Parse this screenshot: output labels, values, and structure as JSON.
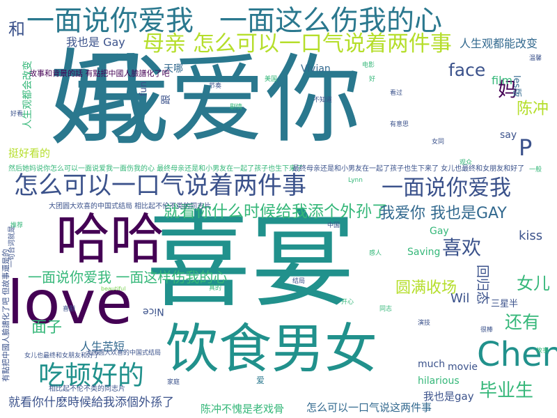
{
  "palette": {
    "purple": "#440154",
    "teal": "#2a788e",
    "sea": "#21918c",
    "green": "#35b779",
    "lime": "#b5de2b",
    "yellow": "#bddf26",
    "blue": "#31688e",
    "indigo": "#3b528b",
    "light": "#7ad151"
  },
  "words": {
    "w1": "我爱你",
    "w2": "喜宴",
    "w3": "妈",
    "w4": "love",
    "w5": "哈哈",
    "w6": "饮食男女",
    "w7": "一面说你爱我",
    "w8": "一面这么伤我的心",
    "w9": "母亲 怎么可以一口气说着两件事",
    "w10": "怎么可以一口气说着两件事",
    "w11": "一面说你爱我",
    "w12": "Chen",
    "w13": "吃顿好的",
    "w14": "就看你什么时候给我添个外孙了",
    "w15": "我爱你 我也是GAY",
    "w16": "一面说你爱我 一面这样伤我的心",
    "w17": "喜欢",
    "w18": "face",
    "w19": "P",
    "w20": "妈",
    "w21": "陈冲",
    "w22": "女儿",
    "w23": "毕业生",
    "w24": "还有",
    "w25": "圆满收场",
    "w26": "面子",
    "w27": "人生苦短",
    "w28": "就看你什麽時候給我添個外孫了",
    "w29": "陈冲不愧是老戏骨",
    "w30": "怎么可以一口气说这两件事",
    "w31": "我也是gay",
    "w32": "我也是 Gay",
    "w33": "人生观都能改变",
    "w34": "和",
    "w35": "Vivian",
    "w36": "天哪",
    "w37": "film",
    "w38": "kiss",
    "w39": "Wil",
    "w40": "三星半",
    "w41": "much",
    "w42": "movie",
    "w43": "hilarious",
    "w44": "Saving",
    "w45": "Gay",
    "w46": "say",
    "w47": "挺好看的",
    "w48": "故事和背景的話 有點把中國人臉譜化了吧",
    "w49": "然后她妈说你怎么可以一面说爱我一面伤我的心 最终母亲还是和小男友在一起了孩子也生下来了",
    "w50": "最终母亲还是和小男友在一起了孩子也生下来了 女儿也最终和女朋友和好了",
    "w51": "大团圆大欢喜的中国式结局 相比起不伦不类的同志片",
    "w52": "大团圆大欢喜的中国式结局",
    "w53": "女儿也最终和女朋友和好了",
    "w54": "相比起不伦不类的同志片",
    "w55": "人生观都会改变",
    "w56": "跟",
    "w57": "fun",
    "w58": "les版",
    "w59": "回归态",
    "w60": "Nice",
    "w61": "有點把中國人臉譜化了吧 但故事還是的",
    "w62": "一句台词就是",
    "w63": "爱",
    "w64": "Lynn",
    "w65": "beautiful",
    "w66": "不知道",
    "w67": "好",
    "w68": "有意思",
    "w69": "开心",
    "w70": "演技",
    "w71": "电影",
    "w72": "节奏",
    "w73": "剧情",
    "w74": "家庭",
    "w75": "同志",
    "w76": "女同",
    "w77": "观众",
    "w78": "结局",
    "w79": "真的",
    "w80": "温馨",
    "w81": "一般",
    "w82": "好看",
    "w83": "推荐",
    "w84": "喜剧",
    "w85": "感人",
    "w86": "中国",
    "w87": "美国",
    "w88": "看过",
    "w89": "故事",
    "w90": "很棒"
  }
}
